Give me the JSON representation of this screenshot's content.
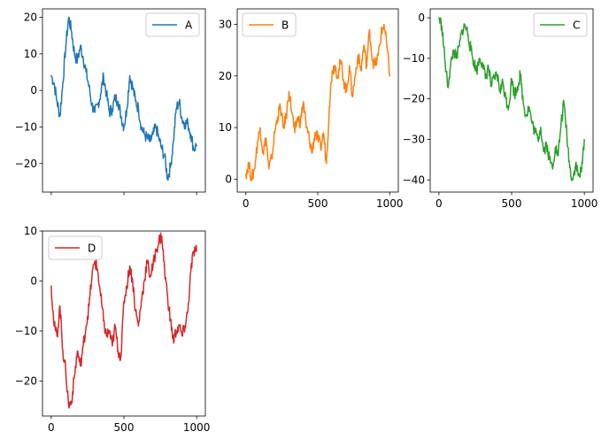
{
  "figure": {
    "background": "#ffffff"
  },
  "chart_data": [
    {
      "id": "A",
      "type": "line",
      "series": [
        {
          "name": "A",
          "color": "#1f77b4"
        }
      ],
      "xlim": [
        -60,
        1060
      ],
      "ylim": [
        -27.8,
        22.3
      ],
      "xticks": [
        0,
        500,
        1000
      ],
      "xticklabels_visible": false,
      "yticks": [
        -20,
        -10,
        0,
        10,
        20
      ],
      "legend": "top-right",
      "x": [
        0,
        20,
        40,
        60,
        80,
        100,
        120,
        140,
        160,
        180,
        200,
        220,
        240,
        260,
        280,
        300,
        320,
        340,
        360,
        380,
        400,
        420,
        440,
        460,
        480,
        500,
        520,
        540,
        560,
        580,
        600,
        620,
        640,
        660,
        680,
        700,
        720,
        740,
        760,
        780,
        800,
        820,
        840,
        860,
        880,
        900,
        920,
        940,
        960,
        980,
        1000
      ],
      "y": [
        4,
        2,
        -3,
        -7,
        2,
        12,
        20,
        16,
        10,
        8,
        12,
        9,
        5,
        1,
        -4,
        -6,
        -4,
        -1,
        4,
        -1,
        -6,
        -5,
        -2,
        -3,
        -7,
        -10,
        -5,
        4,
        1,
        -3,
        -5,
        -10,
        -12,
        -13,
        -14,
        -12,
        -10,
        -13,
        -16,
        -18,
        -24,
        -21,
        -14,
        -5,
        -3,
        -8,
        -9,
        -9,
        -12,
        -16,
        -15
      ]
    },
    {
      "id": "B",
      "type": "line",
      "series": [
        {
          "name": "B",
          "color": "#ff7f0e"
        }
      ],
      "xlim": [
        -60,
        1060
      ],
      "ylim": [
        -2.5,
        33
      ],
      "xticks": [
        0,
        500,
        1000
      ],
      "xticklabels": [
        "0",
        "500",
        "1000"
      ],
      "yticks": [
        0,
        10,
        20,
        30
      ],
      "legend": "top-left",
      "x": [
        0,
        20,
        40,
        60,
        80,
        100,
        120,
        140,
        160,
        180,
        200,
        220,
        240,
        260,
        280,
        300,
        320,
        340,
        360,
        380,
        400,
        420,
        440,
        460,
        480,
        500,
        520,
        540,
        560,
        580,
        600,
        620,
        640,
        660,
        680,
        700,
        720,
        740,
        760,
        780,
        800,
        820,
        840,
        860,
        880,
        900,
        920,
        940,
        960,
        980,
        1000
      ],
      "y": [
        1,
        3,
        0,
        2,
        7,
        10,
        5,
        8,
        2,
        4,
        9,
        12,
        14,
        10,
        12,
        17,
        13,
        9,
        12,
        11,
        15,
        10,
        8,
        5,
        9,
        8,
        6,
        9,
        3,
        14,
        21,
        22,
        20,
        23,
        19,
        17,
        22,
        16,
        20,
        24,
        21,
        26,
        22,
        29,
        23,
        22,
        24,
        28,
        30,
        26,
        20
      ]
    },
    {
      "id": "C",
      "type": "line",
      "series": [
        {
          "name": "C",
          "color": "#2ca02c"
        }
      ],
      "xlim": [
        -60,
        1060
      ],
      "ylim": [
        -43,
        2.2
      ],
      "xticks": [
        0,
        500,
        1000
      ],
      "xticklabels": [
        "0",
        "500",
        "1000"
      ],
      "yticks": [
        0,
        -10,
        -20,
        -30,
        -40
      ],
      "legend": "top-right",
      "x": [
        0,
        20,
        40,
        60,
        80,
        100,
        120,
        140,
        160,
        180,
        200,
        220,
        240,
        260,
        280,
        300,
        320,
        340,
        360,
        380,
        400,
        420,
        440,
        460,
        480,
        500,
        520,
        540,
        560,
        580,
        600,
        620,
        640,
        660,
        680,
        700,
        720,
        740,
        760,
        780,
        800,
        820,
        840,
        860,
        880,
        900,
        920,
        940,
        960,
        980,
        1000
      ],
      "y": [
        0,
        -2,
        -10,
        -17,
        -12,
        -8,
        -10,
        -7,
        -3,
        -2,
        -4,
        -8,
        -11,
        -13,
        -10,
        -11,
        -15,
        -12,
        -17,
        -15,
        -14,
        -18,
        -16,
        -20,
        -22,
        -15,
        -19,
        -17,
        -14,
        -21,
        -24,
        -22,
        -26,
        -28,
        -30,
        -27,
        -33,
        -31,
        -35,
        -37,
        -32,
        -34,
        -26,
        -21,
        -29,
        -37,
        -40,
        -36,
        -39,
        -38,
        -30
      ]
    },
    {
      "id": "D",
      "type": "line",
      "series": [
        {
          "name": "D",
          "color": "#d62728"
        }
      ],
      "xlim": [
        -60,
        1060
      ],
      "ylim": [
        -27,
        10
      ],
      "xticks": [
        0,
        500,
        1000
      ],
      "xticklabels": [
        "0",
        "500",
        "1000"
      ],
      "yticks": [
        -20,
        -10,
        0,
        10
      ],
      "legend": "top-left",
      "x": [
        0,
        20,
        40,
        60,
        80,
        100,
        120,
        140,
        160,
        180,
        200,
        220,
        240,
        260,
        280,
        300,
        320,
        340,
        360,
        380,
        400,
        420,
        440,
        460,
        480,
        500,
        520,
        540,
        560,
        580,
        600,
        620,
        640,
        660,
        680,
        700,
        720,
        740,
        760,
        780,
        800,
        820,
        840,
        860,
        880,
        900,
        920,
        940,
        960,
        980,
        1000
      ],
      "y": [
        -1,
        -9,
        -11,
        -5,
        -14,
        -18,
        -25,
        -24,
        -19,
        -14,
        -17,
        -13,
        -9,
        -5,
        1,
        4,
        2,
        -3,
        -8,
        -11,
        -10,
        -13,
        -9,
        -14,
        -15,
        -4,
        -1,
        3,
        0,
        -6,
        -9,
        -4,
        0,
        4,
        1,
        3,
        6,
        8,
        9,
        2,
        -3,
        -8,
        -12,
        -10,
        -9,
        -11,
        -9,
        -6,
        2,
        6,
        6
      ]
    }
  ]
}
